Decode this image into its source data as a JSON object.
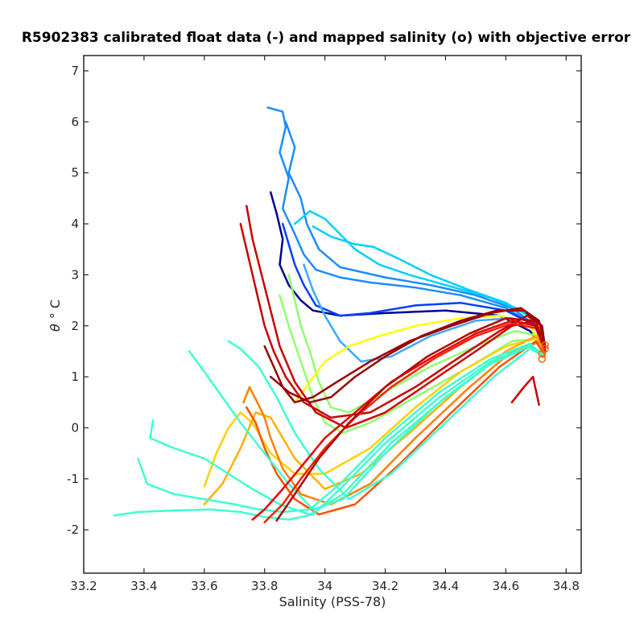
{
  "chart_data": {
    "type": "line",
    "title": "R5902383 calibrated float data (-) and mapped salinity (o) with objective error",
    "xlabel": "Salinity (PSS-78)",
    "ylabel_symbol": "θ",
    "ylabel_unit": "° C",
    "xlim": [
      33.2,
      34.85
    ],
    "ylim": [
      -2.85,
      7.3
    ],
    "x_ticks": [
      33.2,
      33.4,
      33.6,
      33.8,
      34,
      34.2,
      34.4,
      34.6,
      34.8
    ],
    "x_tick_labels": [
      "33.2",
      "33.4",
      "33.6",
      "33.8",
      "34",
      "34.2",
      "34.4",
      "34.6",
      "34.8"
    ],
    "y_ticks": [
      -2,
      -1,
      0,
      1,
      2,
      3,
      4,
      5,
      6,
      7
    ],
    "y_tick_labels": [
      "-2",
      "-1",
      "0",
      "1",
      "2",
      "3",
      "4",
      "5",
      "6",
      "7"
    ],
    "grid": false,
    "colormap": "jet",
    "series": [
      {
        "color": "#1a8cff",
        "x": [
          33.81,
          33.86,
          33.87,
          33.85,
          33.88,
          33.86,
          33.9,
          33.93,
          33.97,
          34.05,
          34.15,
          34.3,
          34.45,
          34.6,
          34.7,
          34.73
        ],
        "y": [
          6.28,
          6.2,
          5.9,
          5.4,
          4.9,
          4.3,
          3.8,
          3.4,
          3.1,
          2.95,
          2.85,
          2.75,
          2.6,
          2.35,
          2.0,
          1.55
        ]
      },
      {
        "color": "#1a8cff",
        "x": [
          33.87,
          33.9,
          33.88,
          33.92,
          33.94,
          33.98,
          34.05,
          34.2,
          34.35,
          34.5,
          34.62,
          34.7,
          34.73
        ],
        "y": [
          6.0,
          5.5,
          5.0,
          4.5,
          4.0,
          3.5,
          3.15,
          2.95,
          2.8,
          2.6,
          2.35,
          2.0,
          1.6
        ]
      },
      {
        "color": "#00cfff",
        "x": [
          33.9,
          33.95,
          34.0,
          34.05,
          34.1,
          34.18,
          34.28,
          34.4,
          34.55,
          34.65,
          34.72,
          34.73
        ],
        "y": [
          4.0,
          4.25,
          4.1,
          3.8,
          3.5,
          3.2,
          3.0,
          2.8,
          2.55,
          2.3,
          2.0,
          1.6
        ]
      },
      {
        "color": "#00cfff",
        "x": [
          33.96,
          34.02,
          34.1,
          34.16,
          34.25,
          34.35,
          34.48,
          34.6,
          34.69,
          34.73
        ],
        "y": [
          3.95,
          3.75,
          3.6,
          3.55,
          3.3,
          3.0,
          2.7,
          2.45,
          2.15,
          1.6
        ]
      },
      {
        "color": "#000090",
        "x": [
          33.82,
          33.84,
          33.86,
          33.85,
          33.88,
          33.92,
          33.96,
          34.05,
          34.2,
          34.4,
          34.58,
          34.68,
          34.73
        ],
        "y": [
          4.62,
          4.2,
          3.7,
          3.2,
          2.8,
          2.5,
          2.3,
          2.2,
          2.25,
          2.3,
          2.2,
          1.9,
          1.5
        ]
      },
      {
        "color": "#0040ff",
        "x": [
          33.86,
          33.88,
          33.9,
          33.93,
          33.97,
          34.05,
          34.15,
          34.3,
          34.45,
          34.6,
          34.7,
          34.73
        ],
        "y": [
          4.0,
          3.6,
          3.2,
          2.8,
          2.4,
          2.2,
          2.25,
          2.4,
          2.45,
          2.3,
          2.0,
          1.55
        ]
      },
      {
        "color": "#3da8ff",
        "x": [
          33.93,
          33.96,
          34.0,
          34.05,
          34.12,
          34.22,
          34.35,
          34.5,
          34.62,
          34.7,
          34.73
        ],
        "y": [
          3.2,
          2.7,
          2.2,
          1.7,
          1.3,
          1.4,
          1.8,
          2.1,
          2.15,
          1.95,
          1.5
        ]
      },
      {
        "color": "#90ff70",
        "x": [
          33.88,
          33.9,
          33.92,
          33.95,
          33.98,
          34.02,
          34.08,
          34.2,
          34.35,
          34.5,
          34.63,
          34.71,
          34.73
        ],
        "y": [
          3.0,
          2.5,
          2.0,
          1.5,
          0.9,
          0.4,
          0.3,
          0.7,
          1.2,
          1.6,
          1.9,
          1.8,
          1.45
        ]
      },
      {
        "color": "#90ff70",
        "x": [
          33.85,
          33.88,
          33.92,
          33.96,
          34.0,
          34.06,
          34.15,
          34.3,
          34.48,
          34.62,
          34.72,
          34.73
        ],
        "y": [
          2.6,
          2.0,
          1.3,
          0.6,
          0.1,
          -0.1,
          0.1,
          0.6,
          1.2,
          1.7,
          1.75,
          1.4
        ]
      },
      {
        "color": "#ffff00",
        "x": [
          33.9,
          33.95,
          34.0,
          34.08,
          34.18,
          34.3,
          34.45,
          34.58,
          34.68,
          34.73
        ],
        "y": [
          0.5,
          0.9,
          1.3,
          1.6,
          1.8,
          2.0,
          2.15,
          2.2,
          2.0,
          1.5
        ]
      },
      {
        "color": "#ffd000",
        "x": [
          33.6,
          33.64,
          33.68,
          33.72,
          33.76,
          33.82,
          33.9,
          34.0,
          34.15,
          34.3,
          34.45,
          34.6,
          34.7,
          34.73
        ],
        "y": [
          -1.15,
          -0.5,
          0.0,
          0.3,
          0.1,
          -0.5,
          -0.9,
          -0.9,
          -0.4,
          0.4,
          1.1,
          1.6,
          1.75,
          1.45
        ]
      },
      {
        "color": "#ffb000",
        "x": [
          33.6,
          33.66,
          33.72,
          33.77,
          33.82,
          33.9,
          34.0,
          34.12,
          34.28,
          34.45,
          34.6,
          34.7,
          34.73
        ],
        "y": [
          -1.5,
          -1.1,
          -0.4,
          0.3,
          0.2,
          -0.6,
          -1.2,
          -0.9,
          -0.1,
          0.8,
          1.5,
          1.8,
          1.5
        ]
      },
      {
        "color": "#ff8000",
        "x": [
          33.73,
          33.75,
          33.78,
          33.8,
          33.82,
          33.86,
          33.92,
          34.02,
          34.15,
          34.3,
          34.48,
          34.62,
          34.72,
          34.73
        ],
        "y": [
          0.5,
          0.8,
          0.45,
          0.2,
          -0.2,
          -0.8,
          -1.3,
          -1.5,
          -1.1,
          -0.2,
          0.8,
          1.5,
          1.7,
          1.4
        ]
      },
      {
        "color": "#ff5000",
        "x": [
          33.74,
          33.77,
          33.8,
          33.84,
          33.9,
          33.98,
          34.1,
          34.25,
          34.42,
          34.58,
          34.7,
          34.73
        ],
        "y": [
          0.4,
          0.1,
          -0.4,
          -0.9,
          -1.4,
          -1.7,
          -1.5,
          -0.7,
          0.3,
          1.2,
          1.7,
          1.4
        ]
      },
      {
        "color": "#40ffd0",
        "x": [
          33.3,
          33.38,
          33.5,
          33.62,
          33.72,
          33.8,
          33.88,
          33.96,
          34.05,
          34.2,
          34.38,
          34.55,
          34.68,
          34.73
        ],
        "y": [
          -1.72,
          -1.65,
          -1.62,
          -1.6,
          -1.65,
          -1.75,
          -1.8,
          -1.7,
          -1.2,
          -0.3,
          0.6,
          1.3,
          1.6,
          1.4
        ]
      },
      {
        "color": "#40ffd0",
        "x": [
          33.38,
          33.41,
          33.5,
          33.6,
          33.7,
          33.78,
          33.86,
          33.95,
          34.05,
          34.2,
          34.38,
          34.55,
          34.68,
          34.73
        ],
        "y": [
          -0.6,
          -1.1,
          -1.3,
          -1.4,
          -1.5,
          -1.6,
          -1.65,
          -1.6,
          -1.1,
          -0.2,
          0.7,
          1.35,
          1.65,
          1.4
        ]
      },
      {
        "color": "#40ffd0",
        "x": [
          33.43,
          33.42,
          33.5,
          33.6,
          33.68,
          33.76,
          33.85,
          33.95,
          34.06,
          34.22,
          34.4,
          34.56,
          34.68,
          34.73
        ],
        "y": [
          0.15,
          -0.2,
          -0.4,
          -0.6,
          -0.9,
          -1.2,
          -1.5,
          -1.7,
          -1.3,
          -0.3,
          0.6,
          1.3,
          1.6,
          1.4
        ]
      },
      {
        "color": "#40ffd0",
        "x": [
          33.55,
          33.6,
          33.66,
          33.72,
          33.8,
          33.88,
          33.96,
          34.06,
          34.2,
          34.38,
          34.55,
          34.68,
          34.73
        ],
        "y": [
          1.5,
          1.1,
          0.6,
          0.1,
          -0.5,
          -1.1,
          -1.6,
          -1.4,
          -0.5,
          0.5,
          1.25,
          1.6,
          1.4
        ]
      },
      {
        "color": "#40ffd0",
        "x": [
          33.68,
          33.72,
          33.78,
          33.84,
          33.9,
          33.98,
          34.08,
          34.22,
          34.4,
          34.56,
          34.68,
          34.73
        ],
        "y": [
          1.7,
          1.55,
          1.2,
          0.6,
          -0.1,
          -0.8,
          -1.4,
          -0.9,
          0.1,
          1.0,
          1.55,
          1.4
        ]
      },
      {
        "color": "#cc0000",
        "x": [
          33.72,
          33.74,
          33.76,
          33.78,
          33.8,
          33.83,
          33.87,
          33.93,
          34.02,
          34.15,
          34.3,
          34.45,
          34.58,
          34.67,
          34.72,
          34.73
        ],
        "y": [
          4.0,
          3.5,
          3.0,
          2.5,
          2.0,
          1.5,
          1.0,
          0.5,
          0.2,
          0.3,
          0.8,
          1.4,
          1.9,
          2.2,
          2.0,
          1.5
        ]
      },
      {
        "color": "#cc0000",
        "x": [
          33.74,
          33.76,
          33.79,
          33.82,
          33.85,
          33.9,
          33.97,
          34.07,
          34.2,
          34.35,
          34.5,
          34.62,
          34.7,
          34.73
        ],
        "y": [
          4.35,
          3.7,
          3.0,
          2.3,
          1.6,
          0.9,
          0.3,
          0.0,
          0.3,
          0.9,
          1.5,
          2.0,
          2.1,
          1.55
        ]
      },
      {
        "color": "#990000",
        "x": [
          33.8,
          33.83,
          33.86,
          33.9,
          33.96,
          34.04,
          34.15,
          34.28,
          34.42,
          34.55,
          34.65,
          34.71,
          34.73
        ],
        "y": [
          1.6,
          1.2,
          0.8,
          0.5,
          0.6,
          0.9,
          1.3,
          1.7,
          2.0,
          2.25,
          2.35,
          2.1,
          1.6
        ]
      },
      {
        "color": "#990000",
        "x": [
          33.82,
          33.88,
          33.95,
          34.02,
          34.1,
          34.2,
          34.32,
          34.45,
          34.57,
          34.66,
          34.72,
          34.73
        ],
        "y": [
          1.0,
          0.7,
          0.5,
          0.6,
          1.0,
          1.4,
          1.8,
          2.1,
          2.3,
          2.3,
          2.0,
          1.55
        ]
      },
      {
        "color": "#e60000",
        "x": [
          33.76,
          33.8,
          33.86,
          33.93,
          34.0,
          34.1,
          34.22,
          34.36,
          34.5,
          34.62,
          34.7,
          34.73
        ],
        "y": [
          -1.8,
          -1.6,
          -1.2,
          -0.7,
          -0.2,
          0.3,
          0.9,
          1.4,
          1.85,
          2.1,
          2.0,
          1.5
        ]
      },
      {
        "color": "#ff2000",
        "x": [
          33.8,
          33.86,
          33.92,
          34.0,
          34.1,
          34.22,
          34.36,
          34.5,
          34.62,
          34.7,
          34.73
        ],
        "y": [
          -1.85,
          -1.5,
          -1.0,
          -0.4,
          0.2,
          0.8,
          1.35,
          1.8,
          2.05,
          1.95,
          1.5
        ]
      },
      {
        "color": "#b30000",
        "x": [
          33.84,
          33.9,
          33.98,
          34.08,
          34.2,
          34.34,
          34.48,
          34.6,
          34.69,
          34.73
        ],
        "y": [
          -1.82,
          -1.3,
          -0.6,
          0.1,
          0.8,
          1.4,
          1.85,
          2.15,
          2.1,
          1.55
        ]
      },
      {
        "color": "#cc0000",
        "x": [
          34.62,
          34.66,
          34.69,
          34.71
        ],
        "y": [
          0.5,
          0.8,
          1.0,
          0.45
        ]
      }
    ],
    "mapped_points": {
      "color": "#ff6000",
      "x": [
        34.72,
        34.72,
        34.73,
        34.73
      ],
      "y": [
        1.35,
        1.45,
        1.55,
        1.62
      ]
    }
  }
}
